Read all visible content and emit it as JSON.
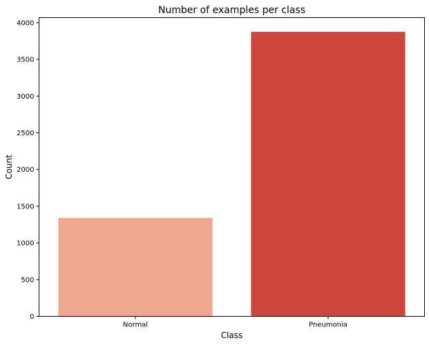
{
  "chart_data": {
    "type": "bar",
    "title": "Number of examples per class",
    "xlabel": "Class",
    "ylabel": "Count",
    "categories": [
      "Normal",
      "Pneumonia"
    ],
    "values": [
      1341,
      3875
    ],
    "colors": [
      "#eda88f",
      "#cd463e"
    ],
    "ylim": [
      0,
      4069
    ],
    "yticks": [
      0,
      500,
      1000,
      1500,
      2000,
      2500,
      3000,
      3500,
      4000
    ],
    "grid": false,
    "legend": "none"
  }
}
